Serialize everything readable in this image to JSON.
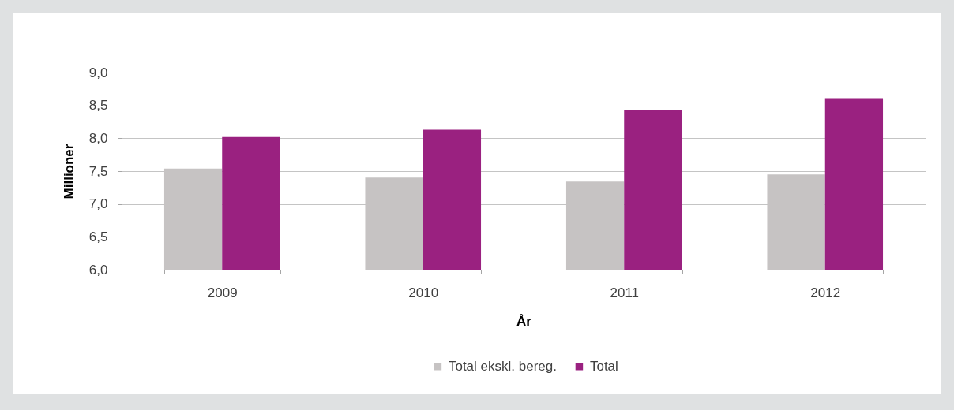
{
  "chart_data": {
    "type": "bar",
    "xlabel": "År",
    "ylabel": "Millioner",
    "categories": [
      "2009",
      "2010",
      "2011",
      "2012"
    ],
    "series": [
      {
        "name": "Total ekskl. bereg.",
        "color": "#c6c3c3",
        "values": [
          7.54,
          7.4,
          7.34,
          7.45
        ]
      },
      {
        "name": "Total",
        "color": "#9a2180",
        "values": [
          8.02,
          8.13,
          8.43,
          8.61
        ]
      }
    ],
    "ylim": [
      6,
      9
    ],
    "yticks": [
      {
        "value": 6,
        "label": "6,0"
      },
      {
        "value": 6.5,
        "label": "6,5"
      },
      {
        "value": 7,
        "label": "7,0"
      },
      {
        "value": 7.5,
        "label": "7,5"
      },
      {
        "value": 8,
        "label": "8,0"
      },
      {
        "value": 8.5,
        "label": "8,5"
      },
      {
        "value": 9,
        "label": "9,0"
      }
    ],
    "grid": "y",
    "legend": "bottom"
  }
}
